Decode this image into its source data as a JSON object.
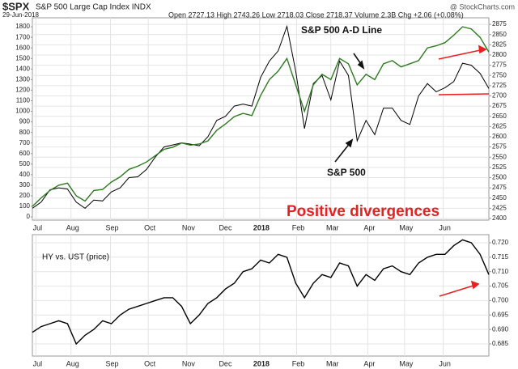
{
  "chart_data": [
    {
      "type": "line",
      "title": "$SPX",
      "subtitle": "S&P 500 Large Cap Index INDX",
      "date": "29-Jun-2018",
      "quote": "Open 2727.13 High 2743.26 Low 2718.03 Close 2718.37 Volume 2.3B Chg +2.06 (+0.08%)",
      "source": "@ StockCharts.com",
      "annotations": [
        "S&P 500 A-D Line",
        "S&P 500",
        "Positive divergences"
      ],
      "x": [
        0,
        1,
        2,
        3,
        4,
        5,
        6,
        7,
        8,
        9,
        10,
        11,
        12,
        13,
        14,
        15,
        16,
        17,
        18,
        19,
        20,
        21,
        22,
        23,
        24,
        25,
        26,
        27,
        28,
        29,
        30,
        31,
        32,
        33,
        34,
        35,
        36,
        37,
        38,
        39,
        40,
        41,
        42,
        43,
        44,
        45,
        46,
        47,
        48,
        49,
        50,
        51,
        52
      ],
      "xlim": [
        0,
        52
      ],
      "xticks": [
        {
          "value": 0.4,
          "label": "Jul"
        },
        {
          "value": 4.4,
          "label": "Aug"
        },
        {
          "value": 8.9,
          "label": "Sep"
        },
        {
          "value": 13.2,
          "label": "Oct"
        },
        {
          "value": 17.6,
          "label": "Nov"
        },
        {
          "value": 21.8,
          "label": "Dec"
        },
        {
          "value": 25.9,
          "label": "2018"
        },
        {
          "value": 30.1,
          "label": "Feb"
        },
        {
          "value": 34,
          "label": "Mar"
        },
        {
          "value": 38.2,
          "label": "Apr"
        },
        {
          "value": 42.4,
          "label": "May"
        },
        {
          "value": 46.8,
          "label": "Jun"
        }
      ],
      "ylim": [
        -30,
        1885
      ],
      "yticks": [
        0,
        100,
        200,
        300,
        400,
        500,
        600,
        700,
        800,
        900,
        1000,
        1100,
        1200,
        1300,
        1400,
        1500,
        1600,
        1700,
        1800
      ],
      "y2lim": [
        2396,
        2891
      ],
      "y2ticks": [
        2400,
        2425,
        2450,
        2475,
        2500,
        2525,
        2550,
        2575,
        2600,
        2625,
        2650,
        2675,
        2700,
        2725,
        2750,
        2775,
        2800,
        2825,
        2850,
        2875
      ],
      "grid": true,
      "series": [
        {
          "name": "S&P 500",
          "color": "#000000",
          "axis": "y2",
          "values": [
            2425,
            2440,
            2470,
            2475,
            2472,
            2440,
            2425,
            2445,
            2443,
            2465,
            2475,
            2500,
            2502,
            2520,
            2550,
            2575,
            2580,
            2585,
            2582,
            2578,
            2600,
            2640,
            2650,
            2675,
            2680,
            2675,
            2745,
            2785,
            2810,
            2870,
            2760,
            2620,
            2730,
            2750,
            2690,
            2785,
            2750,
            2590,
            2640,
            2605,
            2670,
            2670,
            2640,
            2630,
            2700,
            2730,
            2710,
            2720,
            2735,
            2780,
            2775,
            2755,
            2718
          ]
        },
        {
          "name": "S&P 500 A-D Line",
          "color": "#2d7a1f",
          "axis": "y",
          "values": [
            100,
            180,
            250,
            300,
            320,
            200,
            150,
            250,
            260,
            330,
            380,
            450,
            480,
            520,
            580,
            640,
            660,
            700,
            680,
            690,
            720,
            820,
            880,
            950,
            980,
            960,
            1150,
            1300,
            1380,
            1500,
            1250,
            1000,
            1250,
            1350,
            1300,
            1500,
            1450,
            1250,
            1350,
            1300,
            1450,
            1480,
            1420,
            1450,
            1480,
            1600,
            1620,
            1650,
            1720,
            1800,
            1780,
            1700,
            1560
          ]
        }
      ]
    },
    {
      "type": "line",
      "title": "HY vs. UST (price)",
      "x": [
        0,
        1,
        2,
        3,
        4,
        5,
        6,
        7,
        8,
        9,
        10,
        11,
        12,
        13,
        14,
        15,
        16,
        17,
        18,
        19,
        20,
        21,
        22,
        23,
        24,
        25,
        26,
        27,
        28,
        29,
        30,
        31,
        32,
        33,
        34,
        35,
        36,
        37,
        38,
        39,
        40,
        41,
        42,
        43,
        44,
        45,
        46,
        47,
        48,
        49,
        50,
        51,
        52
      ],
      "xlim": [
        0,
        52
      ],
      "xticks": [
        {
          "value": 0.4,
          "label": "Jul"
        },
        {
          "value": 4.4,
          "label": "Aug"
        },
        {
          "value": 8.9,
          "label": "Sep"
        },
        {
          "value": 13.2,
          "label": "Oct"
        },
        {
          "value": 17.6,
          "label": "Nov"
        },
        {
          "value": 21.8,
          "label": "Dec"
        },
        {
          "value": 25.9,
          "label": "2018"
        },
        {
          "value": 30.1,
          "label": "Feb"
        },
        {
          "value": 34,
          "label": "Mar"
        },
        {
          "value": 38.2,
          "label": "Apr"
        },
        {
          "value": 42.4,
          "label": "May"
        },
        {
          "value": 46.8,
          "label": "Jun"
        }
      ],
      "y2lim": [
        0.6808,
        0.7228
      ],
      "y2ticks": [
        {
          "value": 0.685,
          "label": "0.685"
        },
        {
          "value": 0.69,
          "label": "0.690"
        },
        {
          "value": 0.695,
          "label": "0.695"
        },
        {
          "value": 0.7,
          "label": "0.700"
        },
        {
          "value": 0.705,
          "label": "0.705"
        },
        {
          "value": 0.71,
          "label": "0.710"
        },
        {
          "value": 0.715,
          "label": "0.715"
        },
        {
          "value": 0.72,
          "label": "0.720"
        }
      ],
      "grid": true,
      "series": [
        {
          "name": "HY vs. UST (price)",
          "color": "#000000",
          "axis": "y2",
          "values": [
            0.689,
            0.691,
            0.692,
            0.693,
            0.692,
            0.685,
            0.688,
            0.69,
            0.693,
            0.692,
            0.695,
            0.697,
            0.698,
            0.699,
            0.7,
            0.701,
            0.701,
            0.698,
            0.692,
            0.695,
            0.699,
            0.701,
            0.704,
            0.706,
            0.71,
            0.711,
            0.714,
            0.713,
            0.716,
            0.715,
            0.706,
            0.701,
            0.706,
            0.709,
            0.708,
            0.713,
            0.712,
            0.705,
            0.709,
            0.707,
            0.711,
            0.712,
            0.71,
            0.709,
            0.713,
            0.715,
            0.716,
            0.716,
            0.719,
            0.721,
            0.72,
            0.716,
            0.709
          ]
        }
      ]
    }
  ]
}
